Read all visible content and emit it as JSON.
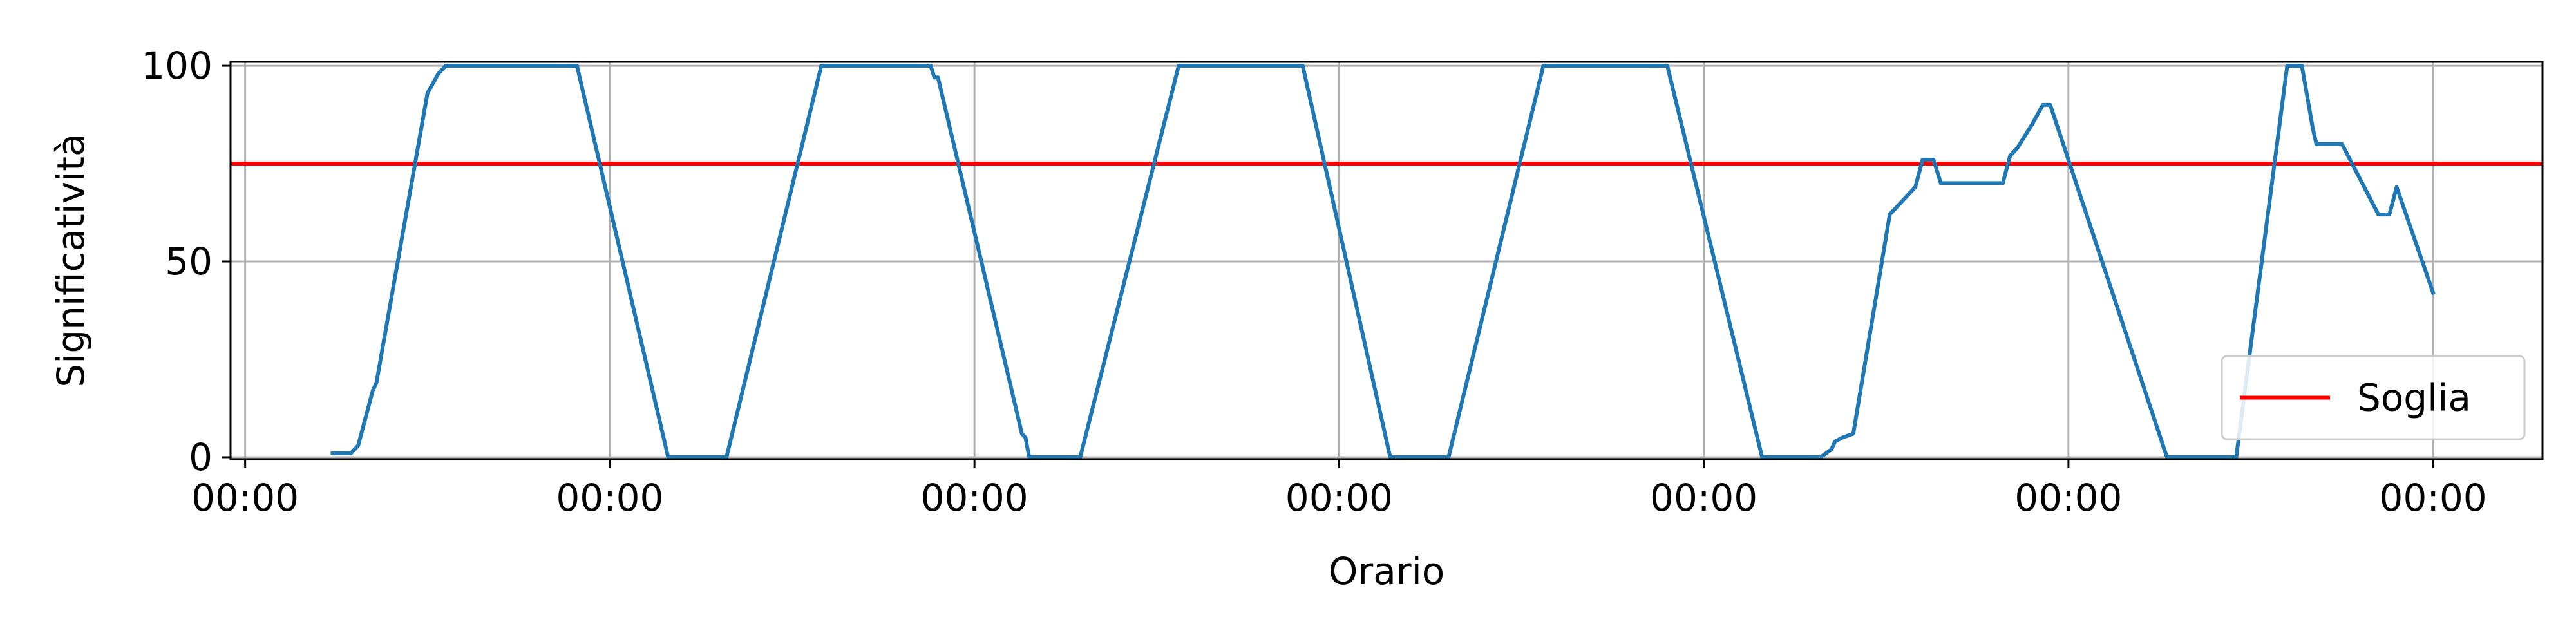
{
  "chart_data": {
    "type": "line",
    "xlabel": "Orario",
    "ylabel": "Significatività",
    "xlim": [
      -0.04,
      6.3
    ],
    "ylim": [
      -0.5,
      101
    ],
    "x_ticks": [
      0,
      1,
      2,
      3,
      4,
      5,
      6
    ],
    "x_tick_labels": [
      "00:00",
      "00:00",
      "00:00",
      "00:00",
      "00:00",
      "00:00",
      "00:00"
    ],
    "y_ticks": [
      0,
      50,
      100
    ],
    "y_tick_labels": [
      "0",
      "50",
      "100"
    ],
    "grid": true,
    "legend": {
      "location": "bottom-right"
    },
    "threshold": {
      "name": "Soglia",
      "value": 75,
      "color": "#ff0000"
    },
    "series": [
      {
        "color": "#1f77b4",
        "x": [
          0.24,
          0.29,
          0.31,
          0.35,
          0.36,
          0.5,
          0.53,
          0.55,
          0.56,
          0.91,
          1.16,
          1.32,
          1.58,
          1.88,
          1.89,
          1.9,
          2.13,
          2.14,
          2.15,
          2.29,
          2.56,
          2.9,
          3.14,
          3.3,
          3.56,
          3.9,
          4.16,
          4.32,
          4.35,
          4.36,
          4.38,
          4.41,
          4.51,
          4.53,
          4.56,
          4.58,
          4.6,
          4.63,
          4.65,
          4.67,
          4.82,
          4.84,
          4.86,
          4.9,
          4.93,
          4.95,
          5.27,
          5.46,
          5.6,
          5.64,
          5.67,
          5.68,
          5.72,
          5.75,
          5.85,
          5.86,
          5.88,
          5.9,
          6.0
        ],
        "y": [
          1,
          1,
          3,
          17,
          19,
          93,
          98,
          100,
          100,
          100,
          0,
          0,
          100,
          100,
          97,
          97,
          6,
          5,
          0,
          0,
          100,
          100,
          0,
          0,
          100,
          100,
          0,
          0,
          2,
          4,
          5,
          6,
          62,
          64,
          67,
          69,
          76,
          76,
          70,
          70,
          70,
          77,
          79,
          85,
          90,
          90,
          0,
          0,
          100,
          100,
          84,
          80,
          80,
          80,
          62,
          62,
          62,
          69,
          42
        ]
      }
    ]
  }
}
